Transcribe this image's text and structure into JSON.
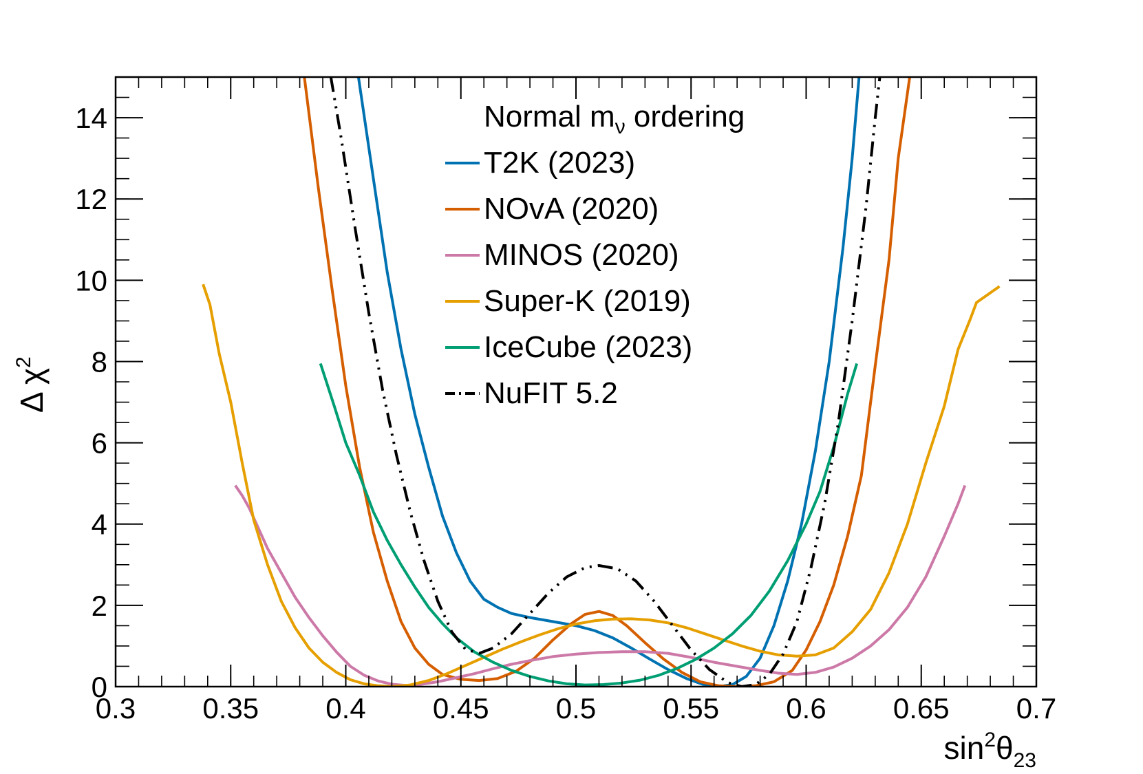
{
  "chart_data": {
    "type": "line",
    "title": "",
    "xlabel": "sin²θ₂₃",
    "xlabel_parts": {
      "base": "sin",
      "sup": "2",
      "sym": "θ",
      "sub": "23"
    },
    "ylabel": "Δ χ²",
    "ylabel_parts": {
      "base": "Δ χ",
      "sup": "2"
    },
    "xlim": [
      0.3,
      0.7
    ],
    "ylim": [
      0,
      15
    ],
    "x_ticks": [
      0.3,
      0.35,
      0.4,
      0.45,
      0.5,
      0.55,
      0.6,
      0.65,
      0.7
    ],
    "x_tick_labels": [
      "0.3",
      "0.35",
      "0.4",
      "0.45",
      "0.5",
      "0.55",
      "0.6",
      "0.65",
      "0.7"
    ],
    "y_ticks": [
      0,
      2,
      4,
      6,
      8,
      10,
      12,
      14
    ],
    "y_tick_labels": [
      "0",
      "2",
      "4",
      "6",
      "8",
      "10",
      "12",
      "14"
    ],
    "grid": false,
    "legend": {
      "placement": "top-center",
      "header": {
        "base": "Normal m",
        "sub": "ν",
        "rest": " ordering"
      }
    },
    "series": [
      {
        "name": "T2K (2023)",
        "color": "#0072B2",
        "dash": "solid",
        "points": [
          [
            0.4055,
            15
          ],
          [
            0.412,
            12.5
          ],
          [
            0.418,
            10.2
          ],
          [
            0.424,
            8.3
          ],
          [
            0.43,
            6.7
          ],
          [
            0.436,
            5.4
          ],
          [
            0.442,
            4.2
          ],
          [
            0.448,
            3.3
          ],
          [
            0.454,
            2.6
          ],
          [
            0.46,
            2.15
          ],
          [
            0.466,
            1.95
          ],
          [
            0.472,
            1.8
          ],
          [
            0.48,
            1.7
          ],
          [
            0.49,
            1.6
          ],
          [
            0.5,
            1.5
          ],
          [
            0.508,
            1.38
          ],
          [
            0.516,
            1.2
          ],
          [
            0.524,
            0.95
          ],
          [
            0.532,
            0.68
          ],
          [
            0.54,
            0.42
          ],
          [
            0.548,
            0.2
          ],
          [
            0.555,
            0.06
          ],
          [
            0.562,
            0.0
          ],
          [
            0.568,
            0.05
          ],
          [
            0.574,
            0.25
          ],
          [
            0.58,
            0.7
          ],
          [
            0.586,
            1.5
          ],
          [
            0.592,
            2.6
          ],
          [
            0.598,
            4.0
          ],
          [
            0.604,
            5.8
          ],
          [
            0.61,
            8.0
          ],
          [
            0.616,
            10.8
          ],
          [
            0.62,
            13.0
          ],
          [
            0.623,
            15
          ]
        ]
      },
      {
        "name": "NOvA (2020)",
        "color": "#D55E00",
        "dash": "solid",
        "points": [
          [
            0.382,
            15
          ],
          [
            0.388,
            12.3
          ],
          [
            0.394,
            9.8
          ],
          [
            0.4,
            7.4
          ],
          [
            0.406,
            5.4
          ],
          [
            0.412,
            3.8
          ],
          [
            0.418,
            2.6
          ],
          [
            0.424,
            1.6
          ],
          [
            0.43,
            0.95
          ],
          [
            0.436,
            0.55
          ],
          [
            0.442,
            0.3
          ],
          [
            0.45,
            0.18
          ],
          [
            0.458,
            0.15
          ],
          [
            0.466,
            0.2
          ],
          [
            0.474,
            0.38
          ],
          [
            0.482,
            0.7
          ],
          [
            0.49,
            1.15
          ],
          [
            0.498,
            1.55
          ],
          [
            0.504,
            1.78
          ],
          [
            0.51,
            1.85
          ],
          [
            0.516,
            1.75
          ],
          [
            0.522,
            1.5
          ],
          [
            0.53,
            1.08
          ],
          [
            0.538,
            0.68
          ],
          [
            0.546,
            0.35
          ],
          [
            0.554,
            0.12
          ],
          [
            0.562,
            0.02
          ],
          [
            0.57,
            0.0
          ],
          [
            0.578,
            0.02
          ],
          [
            0.586,
            0.12
          ],
          [
            0.594,
            0.4
          ],
          [
            0.6,
            0.9
          ],
          [
            0.606,
            1.6
          ],
          [
            0.612,
            2.5
          ],
          [
            0.618,
            3.7
          ],
          [
            0.624,
            5.2
          ],
          [
            0.63,
            7.9
          ],
          [
            0.636,
            10.5
          ],
          [
            0.64,
            13.0
          ],
          [
            0.645,
            15
          ]
        ]
      },
      {
        "name": "MINOS (2020)",
        "color": "#CC79A7",
        "dash": "solid",
        "points": [
          [
            0.352,
            4.95
          ],
          [
            0.355,
            4.7
          ],
          [
            0.358,
            4.4
          ],
          [
            0.362,
            3.9
          ],
          [
            0.366,
            3.4
          ],
          [
            0.372,
            2.8
          ],
          [
            0.378,
            2.2
          ],
          [
            0.384,
            1.7
          ],
          [
            0.39,
            1.25
          ],
          [
            0.396,
            0.85
          ],
          [
            0.402,
            0.5
          ],
          [
            0.408,
            0.28
          ],
          [
            0.414,
            0.14
          ],
          [
            0.42,
            0.06
          ],
          [
            0.426,
            0.03
          ],
          [
            0.432,
            0.05
          ],
          [
            0.44,
            0.12
          ],
          [
            0.448,
            0.22
          ],
          [
            0.456,
            0.32
          ],
          [
            0.464,
            0.44
          ],
          [
            0.472,
            0.55
          ],
          [
            0.48,
            0.64
          ],
          [
            0.49,
            0.74
          ],
          [
            0.5,
            0.8
          ],
          [
            0.51,
            0.84
          ],
          [
            0.52,
            0.86
          ],
          [
            0.53,
            0.86
          ],
          [
            0.54,
            0.82
          ],
          [
            0.55,
            0.72
          ],
          [
            0.56,
            0.6
          ],
          [
            0.57,
            0.5
          ],
          [
            0.58,
            0.4
          ],
          [
            0.588,
            0.33
          ],
          [
            0.596,
            0.3
          ],
          [
            0.604,
            0.35
          ],
          [
            0.612,
            0.48
          ],
          [
            0.62,
            0.7
          ],
          [
            0.628,
            1.0
          ],
          [
            0.636,
            1.4
          ],
          [
            0.644,
            1.95
          ],
          [
            0.652,
            2.7
          ],
          [
            0.66,
            3.7
          ],
          [
            0.666,
            4.5
          ],
          [
            0.669,
            4.95
          ]
        ]
      },
      {
        "name": "Super-K (2019)",
        "color": "#E69F00",
        "dash": "solid",
        "points": [
          [
            0.338,
            9.9
          ],
          [
            0.341,
            9.4
          ],
          [
            0.345,
            8.2
          ],
          [
            0.35,
            7.0
          ],
          [
            0.355,
            5.5
          ],
          [
            0.36,
            4.1
          ],
          [
            0.366,
            3.0
          ],
          [
            0.372,
            2.1
          ],
          [
            0.378,
            1.45
          ],
          [
            0.384,
            0.95
          ],
          [
            0.39,
            0.6
          ],
          [
            0.396,
            0.35
          ],
          [
            0.402,
            0.17
          ],
          [
            0.408,
            0.07
          ],
          [
            0.414,
            0.02
          ],
          [
            0.42,
            0.0
          ],
          [
            0.428,
            0.04
          ],
          [
            0.436,
            0.15
          ],
          [
            0.444,
            0.32
          ],
          [
            0.452,
            0.52
          ],
          [
            0.46,
            0.72
          ],
          [
            0.468,
            0.92
          ],
          [
            0.476,
            1.1
          ],
          [
            0.484,
            1.27
          ],
          [
            0.492,
            1.42
          ],
          [
            0.5,
            1.54
          ],
          [
            0.508,
            1.62
          ],
          [
            0.516,
            1.66
          ],
          [
            0.524,
            1.67
          ],
          [
            0.532,
            1.64
          ],
          [
            0.54,
            1.57
          ],
          [
            0.548,
            1.45
          ],
          [
            0.556,
            1.3
          ],
          [
            0.564,
            1.15
          ],
          [
            0.572,
            1.0
          ],
          [
            0.58,
            0.87
          ],
          [
            0.588,
            0.78
          ],
          [
            0.596,
            0.75
          ],
          [
            0.604,
            0.78
          ],
          [
            0.612,
            0.95
          ],
          [
            0.62,
            1.35
          ],
          [
            0.628,
            1.9
          ],
          [
            0.636,
            2.8
          ],
          [
            0.644,
            4.0
          ],
          [
            0.652,
            5.5
          ],
          [
            0.66,
            6.9
          ],
          [
            0.666,
            8.3
          ],
          [
            0.671,
            9.0
          ],
          [
            0.674,
            9.45
          ],
          [
            0.684,
            9.85
          ]
        ]
      },
      {
        "name": "IceCube (2023)",
        "color": "#009E73",
        "dash": "solid",
        "points": [
          [
            0.389,
            7.95
          ],
          [
            0.395,
            6.9
          ],
          [
            0.4,
            6.0
          ],
          [
            0.406,
            5.2
          ],
          [
            0.412,
            4.3
          ],
          [
            0.418,
            3.6
          ],
          [
            0.424,
            3.0
          ],
          [
            0.43,
            2.45
          ],
          [
            0.436,
            1.95
          ],
          [
            0.442,
            1.55
          ],
          [
            0.448,
            1.2
          ],
          [
            0.456,
            0.85
          ],
          [
            0.464,
            0.6
          ],
          [
            0.472,
            0.4
          ],
          [
            0.48,
            0.25
          ],
          [
            0.488,
            0.14
          ],
          [
            0.496,
            0.07
          ],
          [
            0.504,
            0.04
          ],
          [
            0.512,
            0.05
          ],
          [
            0.52,
            0.09
          ],
          [
            0.528,
            0.16
          ],
          [
            0.536,
            0.28
          ],
          [
            0.544,
            0.45
          ],
          [
            0.552,
            0.67
          ],
          [
            0.56,
            0.95
          ],
          [
            0.568,
            1.3
          ],
          [
            0.576,
            1.75
          ],
          [
            0.584,
            2.35
          ],
          [
            0.592,
            3.1
          ],
          [
            0.6,
            4.0
          ],
          [
            0.606,
            4.8
          ],
          [
            0.612,
            5.9
          ],
          [
            0.618,
            7.2
          ],
          [
            0.622,
            7.95
          ]
        ]
      },
      {
        "name": "NuFIT 5.2",
        "color": "#000000",
        "dash": "dash-dot-dot",
        "points": [
          [
            0.3935,
            15
          ],
          [
            0.398,
            13.5
          ],
          [
            0.404,
            11.3
          ],
          [
            0.41,
            9.2
          ],
          [
            0.416,
            7.3
          ],
          [
            0.422,
            5.7
          ],
          [
            0.428,
            4.3
          ],
          [
            0.434,
            3.1
          ],
          [
            0.44,
            2.1
          ],
          [
            0.446,
            1.35
          ],
          [
            0.452,
            0.92
          ],
          [
            0.458,
            0.82
          ],
          [
            0.464,
            0.95
          ],
          [
            0.472,
            1.3
          ],
          [
            0.48,
            1.8
          ],
          [
            0.488,
            2.3
          ],
          [
            0.496,
            2.7
          ],
          [
            0.504,
            2.93
          ],
          [
            0.51,
            2.98
          ],
          [
            0.518,
            2.9
          ],
          [
            0.526,
            2.6
          ],
          [
            0.534,
            2.1
          ],
          [
            0.542,
            1.5
          ],
          [
            0.55,
            0.9
          ],
          [
            0.558,
            0.42
          ],
          [
            0.566,
            0.1
          ],
          [
            0.572,
            0.0
          ],
          [
            0.578,
            0.05
          ],
          [
            0.584,
            0.3
          ],
          [
            0.59,
            0.8
          ],
          [
            0.596,
            1.6
          ],
          [
            0.602,
            2.9
          ],
          [
            0.608,
            4.5
          ],
          [
            0.614,
            6.5
          ],
          [
            0.62,
            9.0
          ],
          [
            0.626,
            11.8
          ],
          [
            0.63,
            14.0
          ],
          [
            0.632,
            15
          ]
        ]
      }
    ]
  }
}
